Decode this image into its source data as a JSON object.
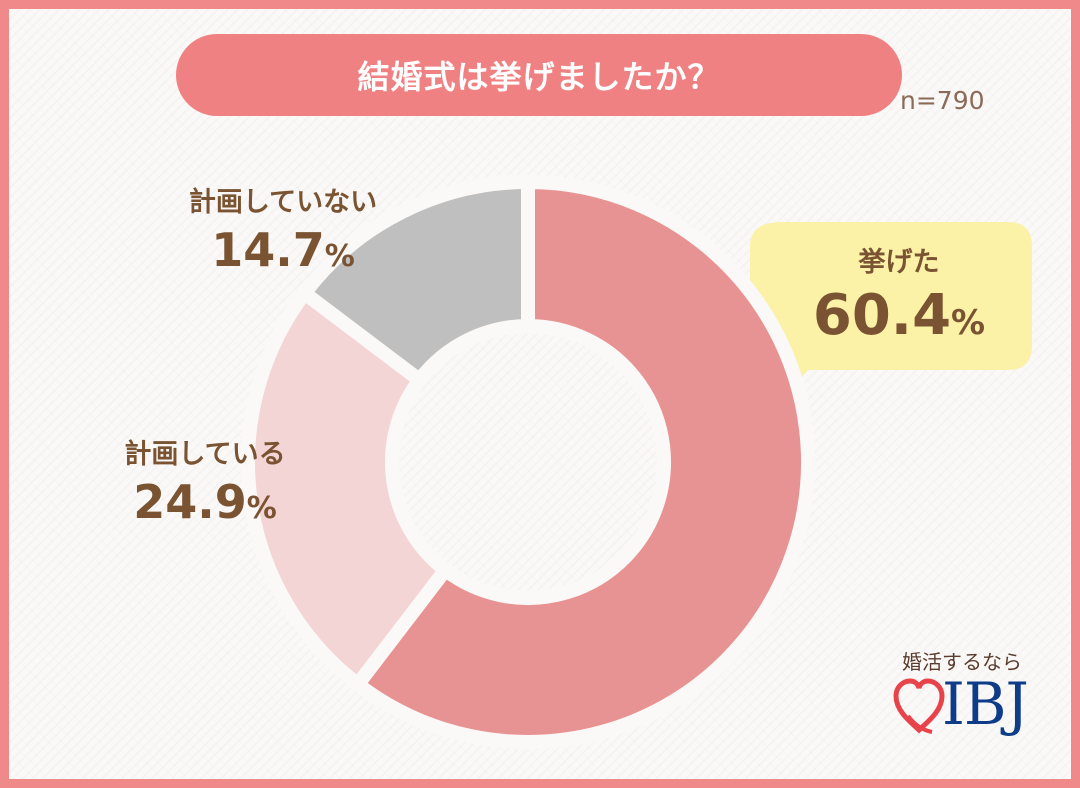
{
  "chart_data": {
    "type": "pie",
    "title": "結婚式は挙げましたか？",
    "sample_size": "n=790",
    "unit": "%",
    "slices": [
      {
        "label": "挙げた",
        "value": 60.4,
        "value_text": "60.4",
        "color": "#e89393"
      },
      {
        "label": "計画している",
        "value": 24.9,
        "value_text": "24.9",
        "color": "#f4d5d6"
      },
      {
        "label": "計画していない",
        "value": 14.7,
        "value_text": "14.7",
        "color": "#bfbfbf"
      }
    ]
  },
  "logo": {
    "tagline": "婚活するなら",
    "wordmark": "IBJ"
  }
}
